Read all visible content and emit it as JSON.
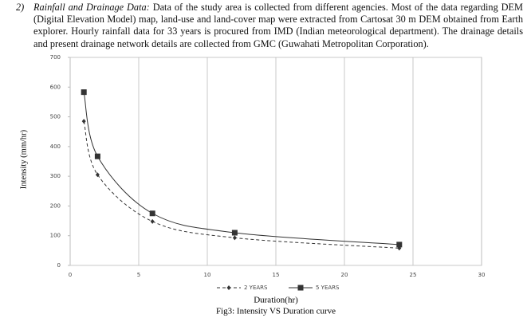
{
  "section": {
    "number": "2)",
    "lead": "Rainfall and Drainage Data:",
    "text": "Data of the study area is collected from different agencies. Most of the data regarding DEM (Digital Elevation Model) map, land-use and land-cover map were extracted from Cartosat 30 m DEM obtained from Earth explorer. Hourly rainfall data for 33 years is procured from IMD (Indian meteorological department). The drainage details and present drainage network details are collected from GMC (Guwahati Metropolitan Corporation)."
  },
  "chart_data": {
    "type": "line",
    "caption": "Fig3: Intensity VS Duration curve",
    "x_label": "Duration(hr)",
    "y_label": "Intensity (mm/hr)",
    "xlim": [
      0,
      30
    ],
    "xticks": [
      0,
      5,
      10,
      15,
      20,
      25,
      30
    ],
    "ylim": [
      0,
      700
    ],
    "yticks": [
      0,
      100,
      200,
      300,
      400,
      500,
      600,
      700
    ],
    "grid": "x",
    "series": [
      {
        "name": "2 YEARS",
        "color": "#333333",
        "x": [
          1,
          2,
          6,
          12,
          24
        ],
        "values": [
          485,
          305,
          148,
          93,
          58
        ]
      },
      {
        "name": "5 YEARS",
        "color": "#333333",
        "x": [
          1,
          2,
          6,
          12,
          24
        ],
        "values": [
          583,
          367,
          175,
          110,
          70
        ]
      }
    ]
  }
}
